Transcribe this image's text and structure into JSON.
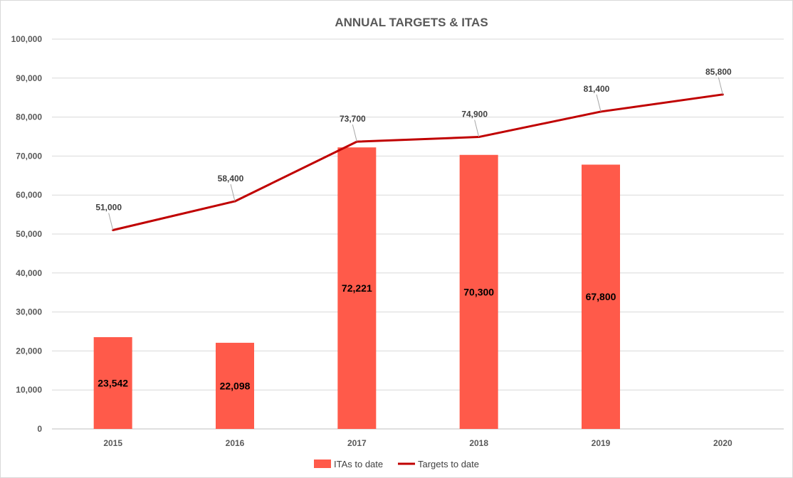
{
  "chart_data": {
    "type": "bar",
    "title": "ANNUAL TARGETS & ITAS",
    "categories": [
      "2015",
      "2016",
      "2017",
      "2018",
      "2019",
      "2020"
    ],
    "series": [
      {
        "name": "ITAs to date",
        "kind": "bar",
        "color": "#ff5a4a",
        "values": [
          23542,
          22098,
          72221,
          70300,
          67800,
          null
        ],
        "labels": [
          "23,542",
          "22,098",
          "72,221",
          "70,300",
          "67,800",
          ""
        ]
      },
      {
        "name": "Targets to date",
        "kind": "line",
        "color": "#c00000",
        "values": [
          51000,
          58400,
          73700,
          74900,
          81400,
          85800
        ],
        "labels": [
          "51,000",
          "58,400",
          "73,700",
          "74,900",
          "81,400",
          "85,800"
        ]
      }
    ],
    "ylim": [
      0,
      100000
    ],
    "yticks": [
      0,
      10000,
      20000,
      30000,
      40000,
      50000,
      60000,
      70000,
      80000,
      90000,
      100000
    ],
    "ytick_labels": [
      "0",
      "10,000",
      "20,000",
      "30,000",
      "40,000",
      "50,000",
      "60,000",
      "70,000",
      "80,000",
      "90,000",
      "100,000"
    ],
    "grid": true,
    "legend": "bottom"
  }
}
